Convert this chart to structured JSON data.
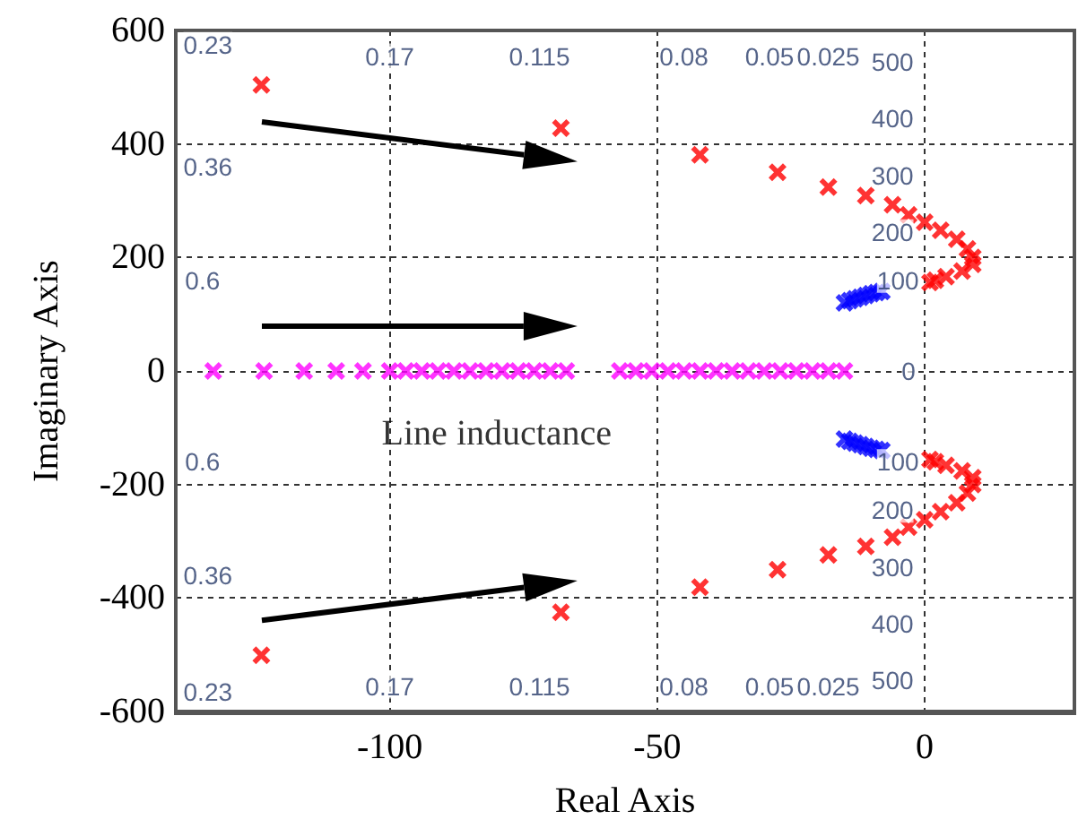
{
  "chart_data": {
    "type": "scatter",
    "xlabel": "Real Axis",
    "ylabel": "Imaginary Axis",
    "xlim": [
      -140,
      28
    ],
    "xticks": [
      -100,
      -50,
      0
    ],
    "ylim": [
      -600,
      600
    ],
    "yticks": [
      -600,
      -400,
      -200,
      0,
      200,
      400,
      600
    ],
    "grid": true,
    "marker": "cross",
    "series": [
      {
        "color": "#ff0000",
        "x": [
          -124,
          -68,
          -42,
          -27.5,
          -18,
          -11,
          -6,
          -3,
          0,
          3,
          6,
          8,
          9,
          9,
          7,
          4,
          2,
          1,
          -124,
          -68,
          -42,
          -27.5,
          -18,
          -11,
          -6,
          -3,
          0,
          3,
          6,
          8,
          9,
          9,
          7,
          4,
          2,
          1
        ],
        "values": [
          504,
          428,
          381,
          350,
          324,
          309,
          293,
          275,
          262,
          248,
          232,
          215,
          200,
          188,
          176,
          166,
          160,
          156,
          -501,
          -425,
          -381,
          -350,
          -324,
          -309,
          -293,
          -275,
          -262,
          -248,
          -232,
          -215,
          -200,
          -188,
          -176,
          -166,
          -160,
          -156
        ]
      },
      {
        "color": "#0000ff",
        "x": [
          -15,
          -14,
          -13,
          -12,
          -11,
          -10,
          -9,
          -8,
          -15,
          -14,
          -13,
          -12,
          -11,
          -10,
          -9,
          -8
        ],
        "values": [
          120,
          124,
          127,
          130,
          133,
          136,
          138,
          140,
          -120,
          -124,
          -127,
          -130,
          -133,
          -136,
          -138,
          -140
        ]
      },
      {
        "color": "#ff00ff",
        "x": [
          -133,
          -123.5,
          -116,
          -110,
          -105,
          -100,
          -97,
          -94,
          -91,
          -88,
          -85,
          -82,
          -79,
          -76,
          -73,
          -70,
          -67,
          -57,
          -54,
          -51,
          -48,
          -45,
          -42,
          -39,
          -36,
          -33,
          -30,
          -27,
          -24,
          -21,
          -18,
          -15
        ],
        "values": [
          0,
          0,
          0,
          0,
          0,
          0,
          0,
          0,
          0,
          0,
          0,
          0,
          0,
          0,
          0,
          0,
          0,
          0,
          0,
          0,
          0,
          0,
          0,
          0,
          0,
          0,
          0,
          0,
          0,
          0,
          0,
          0
        ]
      }
    ],
    "annotations": [
      "0.23",
      "0.17",
      "0.115",
      "0.08",
      "0.05",
      "0.025",
      "0.36",
      "0.6",
      "500",
      "400",
      "300",
      "200",
      "100",
      "0",
      "100",
      "200",
      "300",
      "400",
      "500",
      "0.6",
      "0.36",
      "0.23",
      "0.17",
      "0.115",
      "0.08",
      "0.05",
      "0.025",
      "Line inductance"
    ]
  }
}
